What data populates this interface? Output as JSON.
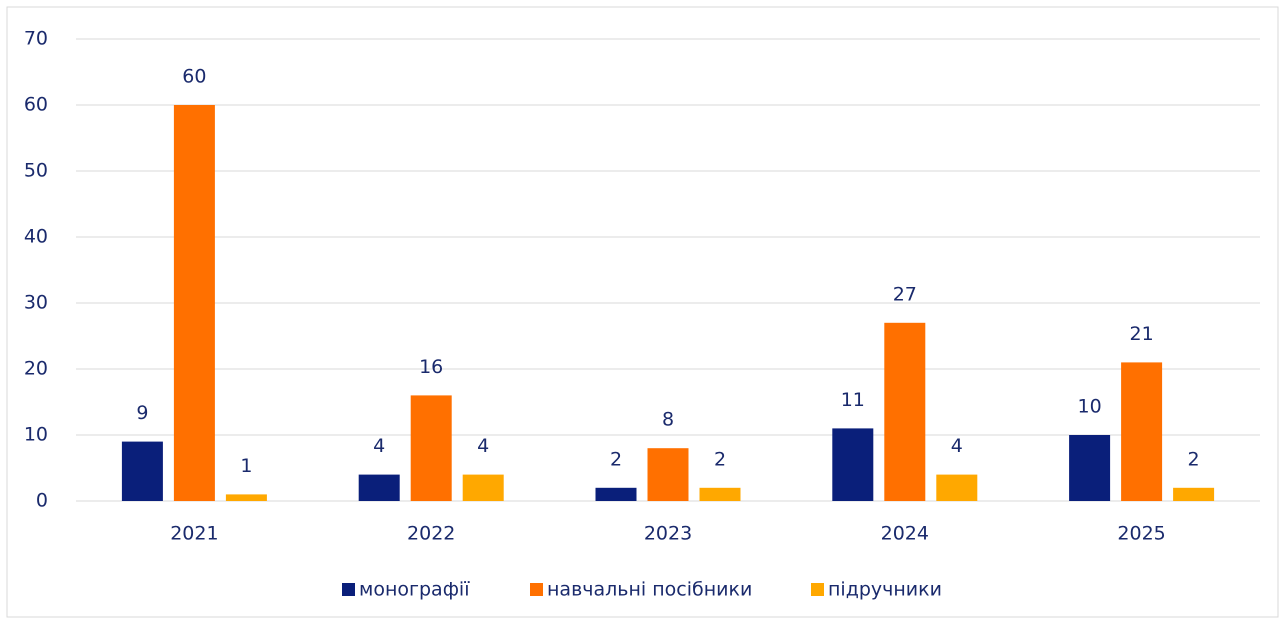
{
  "chart_data": {
    "type": "bar",
    "categories": [
      "2021",
      "2022",
      "2023",
      "2024",
      "2025"
    ],
    "series": [
      {
        "name": "монографії",
        "color": "#0a1f7a",
        "values": [
          9,
          4,
          2,
          11,
          10
        ]
      },
      {
        "name": "навчальні посібники",
        "color": "#ff7000",
        "values": [
          60,
          16,
          8,
          27,
          21
        ]
      },
      {
        "name": "підручники",
        "color": "#ffa800",
        "values": [
          1,
          4,
          2,
          4,
          2
        ]
      }
    ],
    "ylim": [
      0,
      70
    ],
    "yticks": [
      0,
      10,
      20,
      30,
      40,
      50,
      60,
      70
    ],
    "grid": true,
    "legend": "bottom"
  }
}
